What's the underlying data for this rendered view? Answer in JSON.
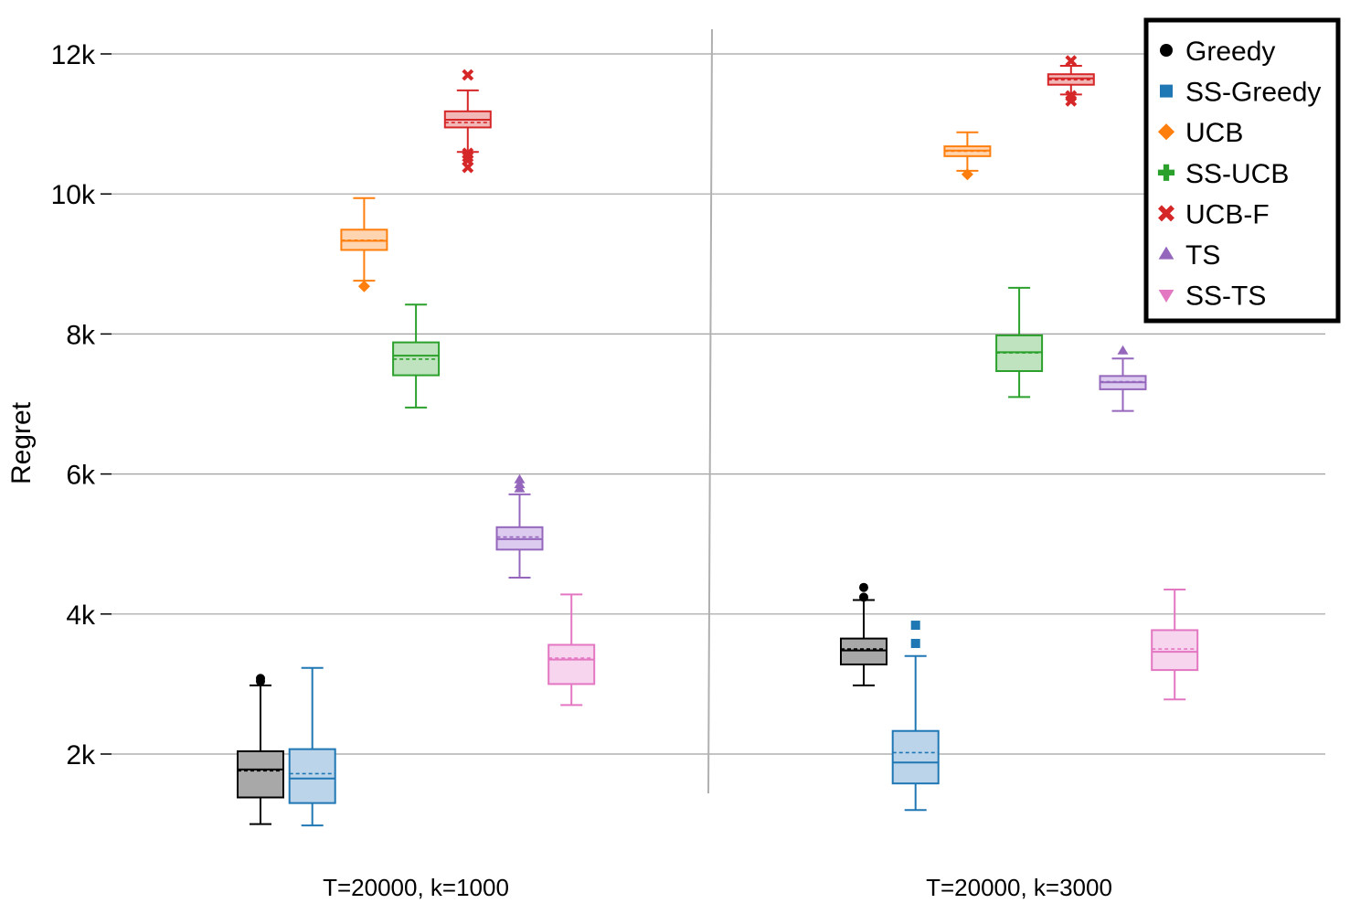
{
  "chart_data": {
    "type": "box",
    "title": "",
    "ylabel": "Regret",
    "xlabel": "",
    "ylim": [
      800,
      12600
    ],
    "y_ticks": [
      2000,
      4000,
      6000,
      8000,
      10000,
      12000
    ],
    "y_tick_labels": [
      "2k",
      "4k",
      "6k",
      "8k",
      "10k",
      "12k"
    ],
    "grid": true,
    "legend_position": "top-right",
    "groups": [
      "T=20000, k=1000",
      "T=20000, k=3000"
    ],
    "series": [
      {
        "name": "Greedy",
        "color": "#000000",
        "fill": "#a8a8a8",
        "marker": "circle",
        "boxes": [
          {
            "min": 1000,
            "q1": 1380,
            "median": 1780,
            "mean": 1760,
            "q3": 2040,
            "max": 2980,
            "outliers": [
              3040,
              3080
            ]
          },
          {
            "min": 2980,
            "q1": 3280,
            "median": 3480,
            "mean": 3500,
            "q3": 3650,
            "max": 4200,
            "outliers": [
              4240,
              4380
            ]
          }
        ]
      },
      {
        "name": "SS-Greedy",
        "color": "#1f77b4",
        "fill": "#bcd4ea",
        "marker": "square",
        "boxes": [
          {
            "min": 980,
            "q1": 1300,
            "median": 1650,
            "mean": 1720,
            "q3": 2070,
            "max": 3230,
            "outliers": []
          },
          {
            "min": 1200,
            "q1": 1580,
            "median": 1880,
            "mean": 2020,
            "q3": 2330,
            "max": 3400,
            "outliers": [
              3580,
              3840
            ]
          }
        ]
      },
      {
        "name": "UCB",
        "color": "#ff7f0e",
        "fill": "#ffd4b1",
        "marker": "diamond",
        "boxes": [
          {
            "min": 8760,
            "q1": 9200,
            "median": 9330,
            "mean": 9340,
            "q3": 9490,
            "max": 9940,
            "outliers": [
              8680
            ]
          },
          {
            "min": 10330,
            "q1": 10540,
            "median": 10620,
            "mean": 10610,
            "q3": 10680,
            "max": 10880,
            "outliers": [
              10280
            ]
          }
        ]
      },
      {
        "name": "SS-UCB",
        "color": "#2ca02c",
        "fill": "#bfe3bf",
        "marker": "plus",
        "boxes": [
          {
            "min": 6950,
            "q1": 7410,
            "median": 7690,
            "mean": 7640,
            "q3": 7880,
            "max": 8420,
            "outliers": []
          },
          {
            "min": 7100,
            "q1": 7470,
            "median": 7740,
            "mean": 7730,
            "q3": 7980,
            "max": 8660,
            "outliers": []
          }
        ]
      },
      {
        "name": "UCB-F",
        "color": "#d62728",
        "fill": "#f2b8b8",
        "marker": "cross",
        "boxes": [
          {
            "min": 10600,
            "q1": 10950,
            "median": 11060,
            "mean": 11020,
            "q3": 11180,
            "max": 11480,
            "outliers": [
              11700,
              10580,
              10530,
              10480,
              10380
            ]
          },
          {
            "min": 11420,
            "q1": 11560,
            "median": 11650,
            "mean": 11630,
            "q3": 11710,
            "max": 11830,
            "outliers": [
              11900,
              11400,
              11330
            ]
          }
        ]
      },
      {
        "name": "TS",
        "color": "#9467bd",
        "fill": "#dccbee",
        "marker": "triangle-up",
        "boxes": [
          {
            "min": 4520,
            "q1": 4920,
            "median": 5070,
            "mean": 5100,
            "q3": 5240,
            "max": 5710,
            "outliers": [
              5790,
              5850,
              5920
            ]
          },
          {
            "min": 6900,
            "q1": 7210,
            "median": 7310,
            "mean": 7320,
            "q3": 7400,
            "max": 7650,
            "outliers": [
              7760
            ]
          }
        ]
      },
      {
        "name": "SS-TS",
        "color": "#e377c2",
        "fill": "#f8d5ee",
        "marker": "triangle-down",
        "boxes": [
          {
            "min": 2700,
            "q1": 3000,
            "median": 3350,
            "mean": 3370,
            "q3": 3560,
            "max": 4280,
            "outliers": []
          },
          {
            "min": 2780,
            "q1": 3200,
            "median": 3460,
            "mean": 3500,
            "q3": 3770,
            "max": 4350,
            "outliers": []
          }
        ]
      }
    ]
  }
}
